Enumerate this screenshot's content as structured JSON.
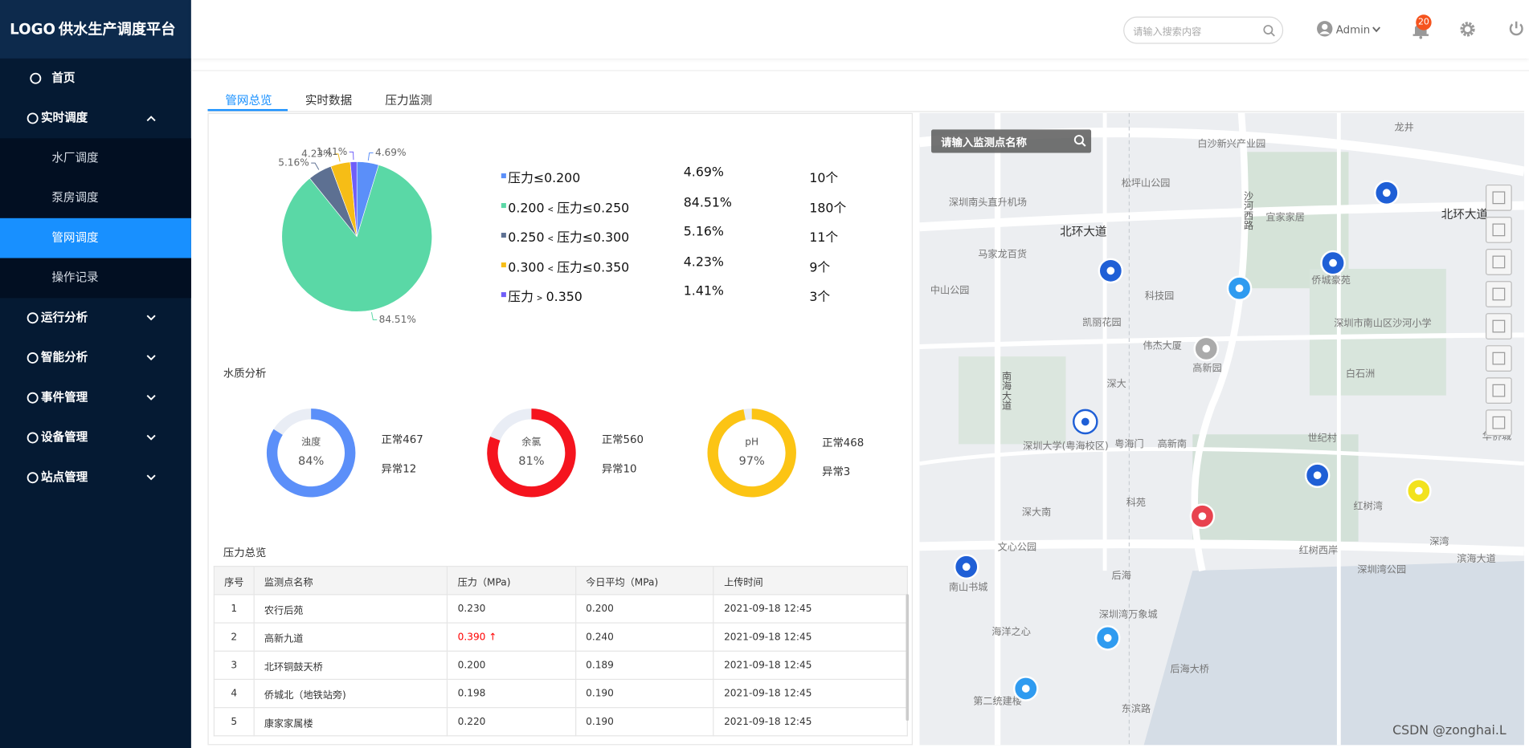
{
  "header": {
    "logo": "LOGO",
    "title": "供水生产调度平台",
    "search_placeholder": "请输入搜索内容",
    "user": "Admin",
    "notifications": 20
  },
  "sidebar": [
    {
      "label": "首页"
    },
    {
      "label": "实时调度",
      "children": [
        {
          "label": "水厂调度"
        },
        {
          "label": "泵房调度"
        },
        {
          "label": "管网调度",
          "active": true
        },
        {
          "label": "操作记录"
        }
      ]
    },
    {
      "label": "运行分析"
    },
    {
      "label": "智能分析"
    },
    {
      "label": "事件管理"
    },
    {
      "label": "设备管理"
    },
    {
      "label": "站点管理"
    }
  ],
  "tabs": [
    {
      "label": "管网总览",
      "active": true
    },
    {
      "label": "实时数据"
    },
    {
      "label": "压力监测"
    }
  ],
  "chart_data": [
    {
      "type": "pie",
      "categories": [
        "压力≤0.200",
        "0.200﹤压力≤0.250",
        "0.250﹤压力≤0.300",
        "0.300﹤压力≤0.350",
        "压力﹥0.350"
      ],
      "values": [
        4.69,
        84.51,
        5.16,
        4.23,
        1.41
      ],
      "value_labels": [
        "4.69%",
        "84.51%",
        "5.16%",
        "4.23%",
        "1.41%"
      ],
      "counts": [
        "10个",
        "180个",
        "11个",
        "9个",
        "3个"
      ],
      "colors": [
        "#5b8ff9",
        "#5ad8a6",
        "#5d7092",
        "#f6bd16",
        "#6f5ef9"
      ]
    },
    {
      "type": "gauge",
      "title": "浊度",
      "values": [
        84
      ],
      "value_labels": [
        "84%"
      ],
      "color": "#5b8ff9",
      "normal": "正常467",
      "abnormal": "异常12"
    },
    {
      "type": "gauge",
      "title": "余氯",
      "values": [
        81
      ],
      "value_labels": [
        "81%"
      ],
      "color": "#f5141e",
      "normal": "正常560",
      "abnormal": "异常10"
    },
    {
      "type": "gauge",
      "title": "pH",
      "values": [
        97
      ],
      "value_labels": [
        "97%"
      ],
      "color": "#fcc414",
      "normal": "正常468",
      "abnormal": "异常3"
    }
  ],
  "sections": {
    "water_quality": "水质分析",
    "pressure": "压力总览"
  },
  "table": {
    "headers": [
      "序号",
      "监测点名称",
      "压力（MPa)",
      "今日平均（MPa)",
      "上传时间"
    ],
    "rows": [
      [
        "1",
        "农行后苑",
        "0.230",
        "0.200",
        "2021-09-18 12:45"
      ],
      [
        "2",
        "高新九道",
        {
          "text": "0.390 ↑",
          "alert": true
        },
        "0.240",
        "2021-09-18 12:45"
      ],
      [
        "3",
        "北环铜鼓天桥",
        "0.200",
        "0.189",
        "2021-09-18 12:45"
      ],
      [
        "4",
        "侨城北（地铁站旁)",
        "0.198",
        "0.190",
        "2021-09-18 12:45"
      ],
      [
        "5",
        "康家家属楼",
        "0.220",
        "0.190",
        "2021-09-18 12:45"
      ]
    ]
  },
  "map": {
    "search_placeholder": "请输入监测点名称",
    "labels": [
      "深圳南头直升机场",
      "北环大道",
      "马家龙百货",
      "中山公园",
      "科技园",
      "凯丽花园",
      "伟杰大厦",
      "高新园",
      "深大",
      "深圳大学(粤海校区)",
      "粤海门",
      "高新南",
      "科苑",
      "深大南",
      "文心公园",
      "后海",
      "南山书城",
      "深圳湾万象城",
      "海洋之心",
      "后海大桥",
      "东滨路",
      "第二统建楼",
      "深圳湾公园",
      "红树湾",
      "世纪村",
      "白石洲",
      "深圳市南山区沙河小学",
      "侨城豪苑",
      "宜家家居",
      "北环大道",
      "松坪山公园",
      "白沙新兴产业园",
      "龙井",
      "滨海大道",
      "红树西岸",
      "深湾",
      "华侨城",
      "南海大道",
      "沙河西路"
    ]
  },
  "watermark": "CSDN @zonghai.L"
}
